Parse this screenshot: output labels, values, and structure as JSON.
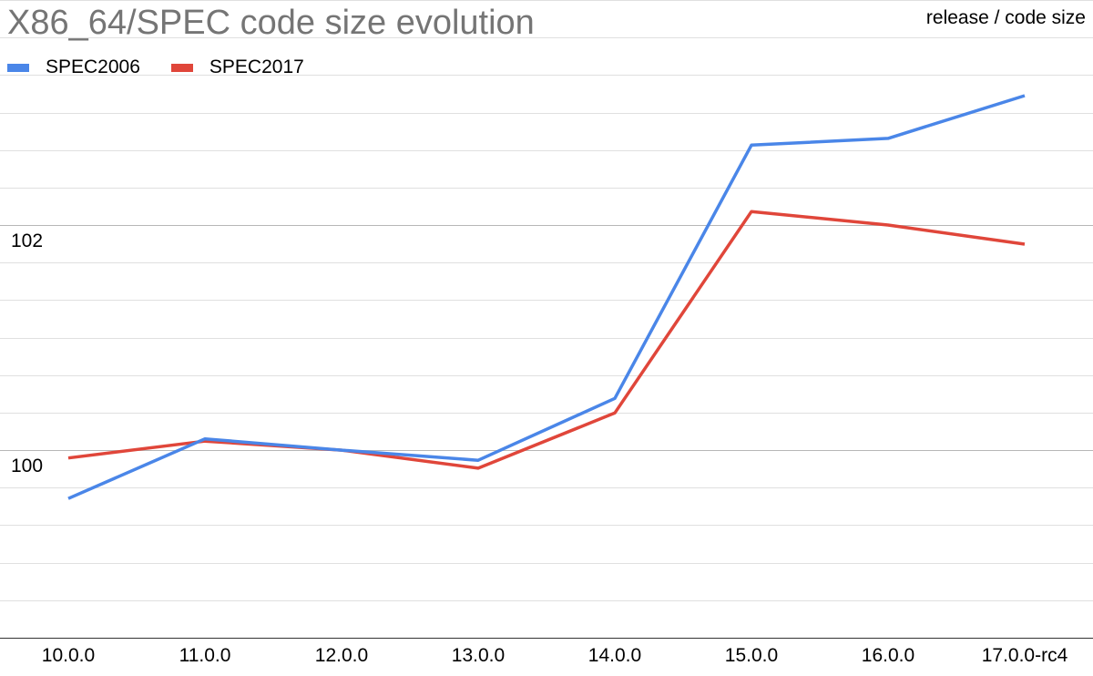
{
  "chart_data": {
    "type": "line",
    "title": "X86_64/SPEC code size evolution",
    "subtitle": "release / code size",
    "xlabel": "",
    "ylabel": "",
    "categories": [
      "10.0.0",
      "11.0.0",
      "12.0.0",
      "13.0.0",
      "14.0.0",
      "15.0.0",
      "16.0.0",
      "17.0.0-rc4"
    ],
    "ylim": [
      98.333,
      104
    ],
    "y_ticks_labeled": [
      "100",
      "102"
    ],
    "y_tick_values": [
      100,
      102
    ],
    "grid": true,
    "legend_position": "top-left",
    "series": [
      {
        "name": "SPEC2006",
        "color": "#4a86e8",
        "values": [
          99.57,
          100.1,
          100.0,
          99.91,
          100.46,
          102.71,
          102.77,
          103.15
        ]
      },
      {
        "name": "SPEC2017",
        "color": "#e0463a",
        "values": [
          99.93,
          100.08,
          100.0,
          99.84,
          100.33,
          102.12,
          102.0,
          101.83
        ]
      }
    ]
  }
}
